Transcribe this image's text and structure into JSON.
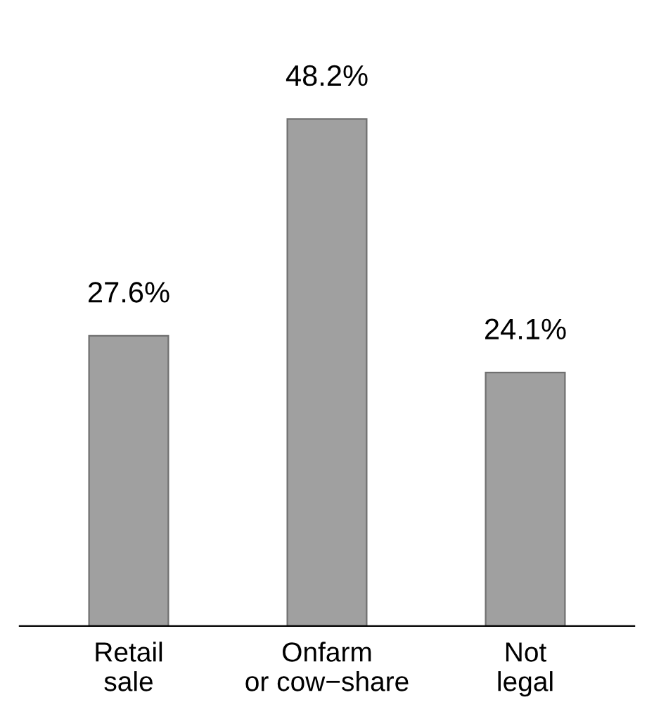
{
  "chart_data": {
    "type": "bar",
    "categories": [
      "Retail\nsale",
      "Onfarm\nor cow−share",
      "Not\nlegal"
    ],
    "values": [
      27.6,
      48.2,
      24.1
    ],
    "value_labels": [
      "27.6%",
      "48.2%",
      "24.1%"
    ],
    "color": "#a0a0a0",
    "grid": false,
    "legend": false
  }
}
